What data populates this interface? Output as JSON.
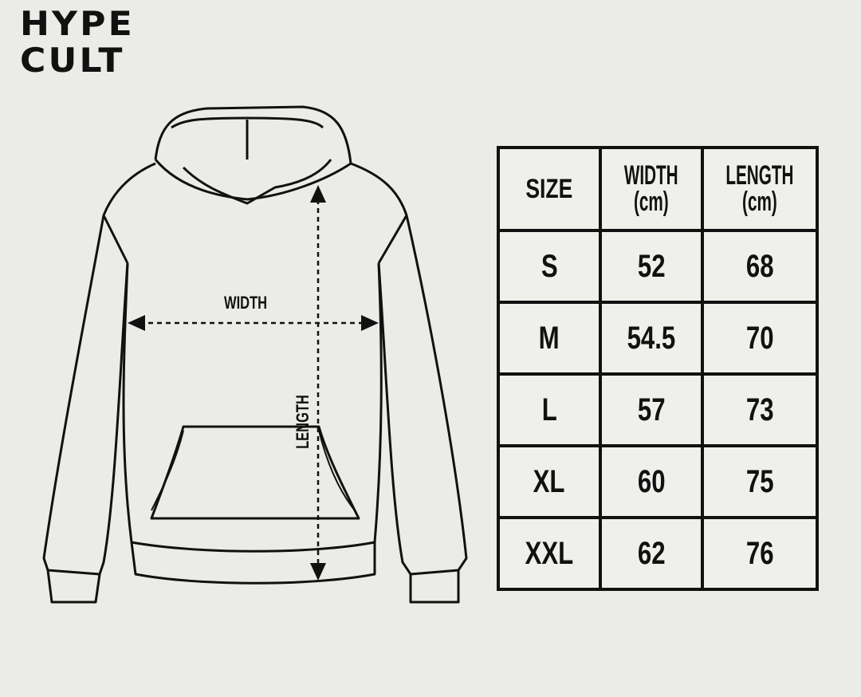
{
  "brand": {
    "line1": "HYPE",
    "line2": "CULT"
  },
  "diagram": {
    "width_label": "WIDTH",
    "length_label": "LENGTH"
  },
  "table": {
    "headers": [
      {
        "title": "SIZE",
        "unit": ""
      },
      {
        "title": "WIDTH",
        "unit": "(cm)"
      },
      {
        "title": "LENGTH",
        "unit": "(cm)"
      }
    ],
    "rows": [
      {
        "size": "S",
        "width": "52",
        "length": "68"
      },
      {
        "size": "M",
        "width": "54.5",
        "length": "70"
      },
      {
        "size": "L",
        "width": "57",
        "length": "73"
      },
      {
        "size": "XL",
        "width": "60",
        "length": "75"
      },
      {
        "size": "XXL",
        "width": "62",
        "length": "76"
      }
    ]
  }
}
